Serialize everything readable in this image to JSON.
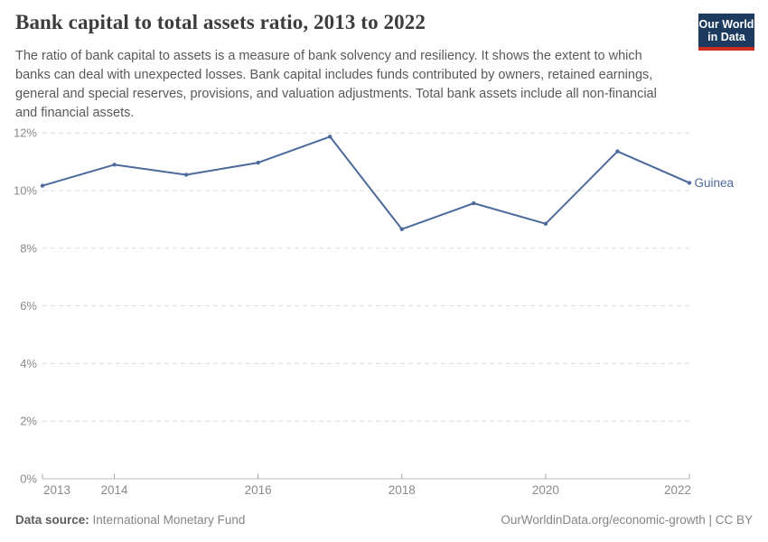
{
  "header": {
    "title": "Bank capital to total assets ratio, 2013 to 2022",
    "subtitle": "The ratio of bank capital to assets is a measure of bank solvency and resiliency. It shows the extent to which banks can deal with unexpected losses. Bank capital includes funds contributed by owners, retained earnings, general and special reserves, provisions, and valuation adjustments. Total bank assets include all non-financial and financial assets."
  },
  "logo": {
    "line1": "Our World",
    "line2": "in Data",
    "bg_color": "#1d3a5f",
    "accent_color": "#cf2e22"
  },
  "chart_data": {
    "type": "line",
    "title": "Bank capital to total assets ratio, 2013 to 2022",
    "x": [
      2013,
      2014,
      2015,
      2016,
      2017,
      2018,
      2019,
      2020,
      2021,
      2022
    ],
    "series": [
      {
        "name": "Guinea",
        "values": [
          10.17,
          10.9,
          10.55,
          10.97,
          11.87,
          8.66,
          9.56,
          8.85,
          11.36,
          10.27
        ],
        "color": "#4c6a9c"
      }
    ],
    "xlabel": "",
    "ylabel": "",
    "ylim": [
      0,
      12
    ],
    "yticks": [
      {
        "value": 0,
        "label": "0%"
      },
      {
        "value": 2,
        "label": "2%"
      },
      {
        "value": 4,
        "label": "4%"
      },
      {
        "value": 6,
        "label": "6%"
      },
      {
        "value": 8,
        "label": "8%"
      },
      {
        "value": 10,
        "label": "10%"
      },
      {
        "value": 12,
        "label": "12%"
      }
    ],
    "xticks": [
      {
        "value": 2013,
        "label": "2013"
      },
      {
        "value": 2014,
        "label": "2014"
      },
      {
        "value": 2016,
        "label": "2016"
      },
      {
        "value": 2018,
        "label": "2018"
      },
      {
        "value": 2020,
        "label": "2020"
      },
      {
        "value": 2022,
        "label": "2022"
      }
    ],
    "grid": "horizontal-dashed",
    "legend": "end-of-line-label",
    "colors": {
      "gridline": "#dcdcdc",
      "axis_line": "#bcbcbc",
      "tick_mark": "#a8a8a8",
      "tick_label": "#8a8a8a"
    }
  },
  "footer": {
    "source_label": "Data source:",
    "source_value": "International Monetary Fund",
    "credit": "OurWorldinData.org/economic-growth | CC BY"
  }
}
